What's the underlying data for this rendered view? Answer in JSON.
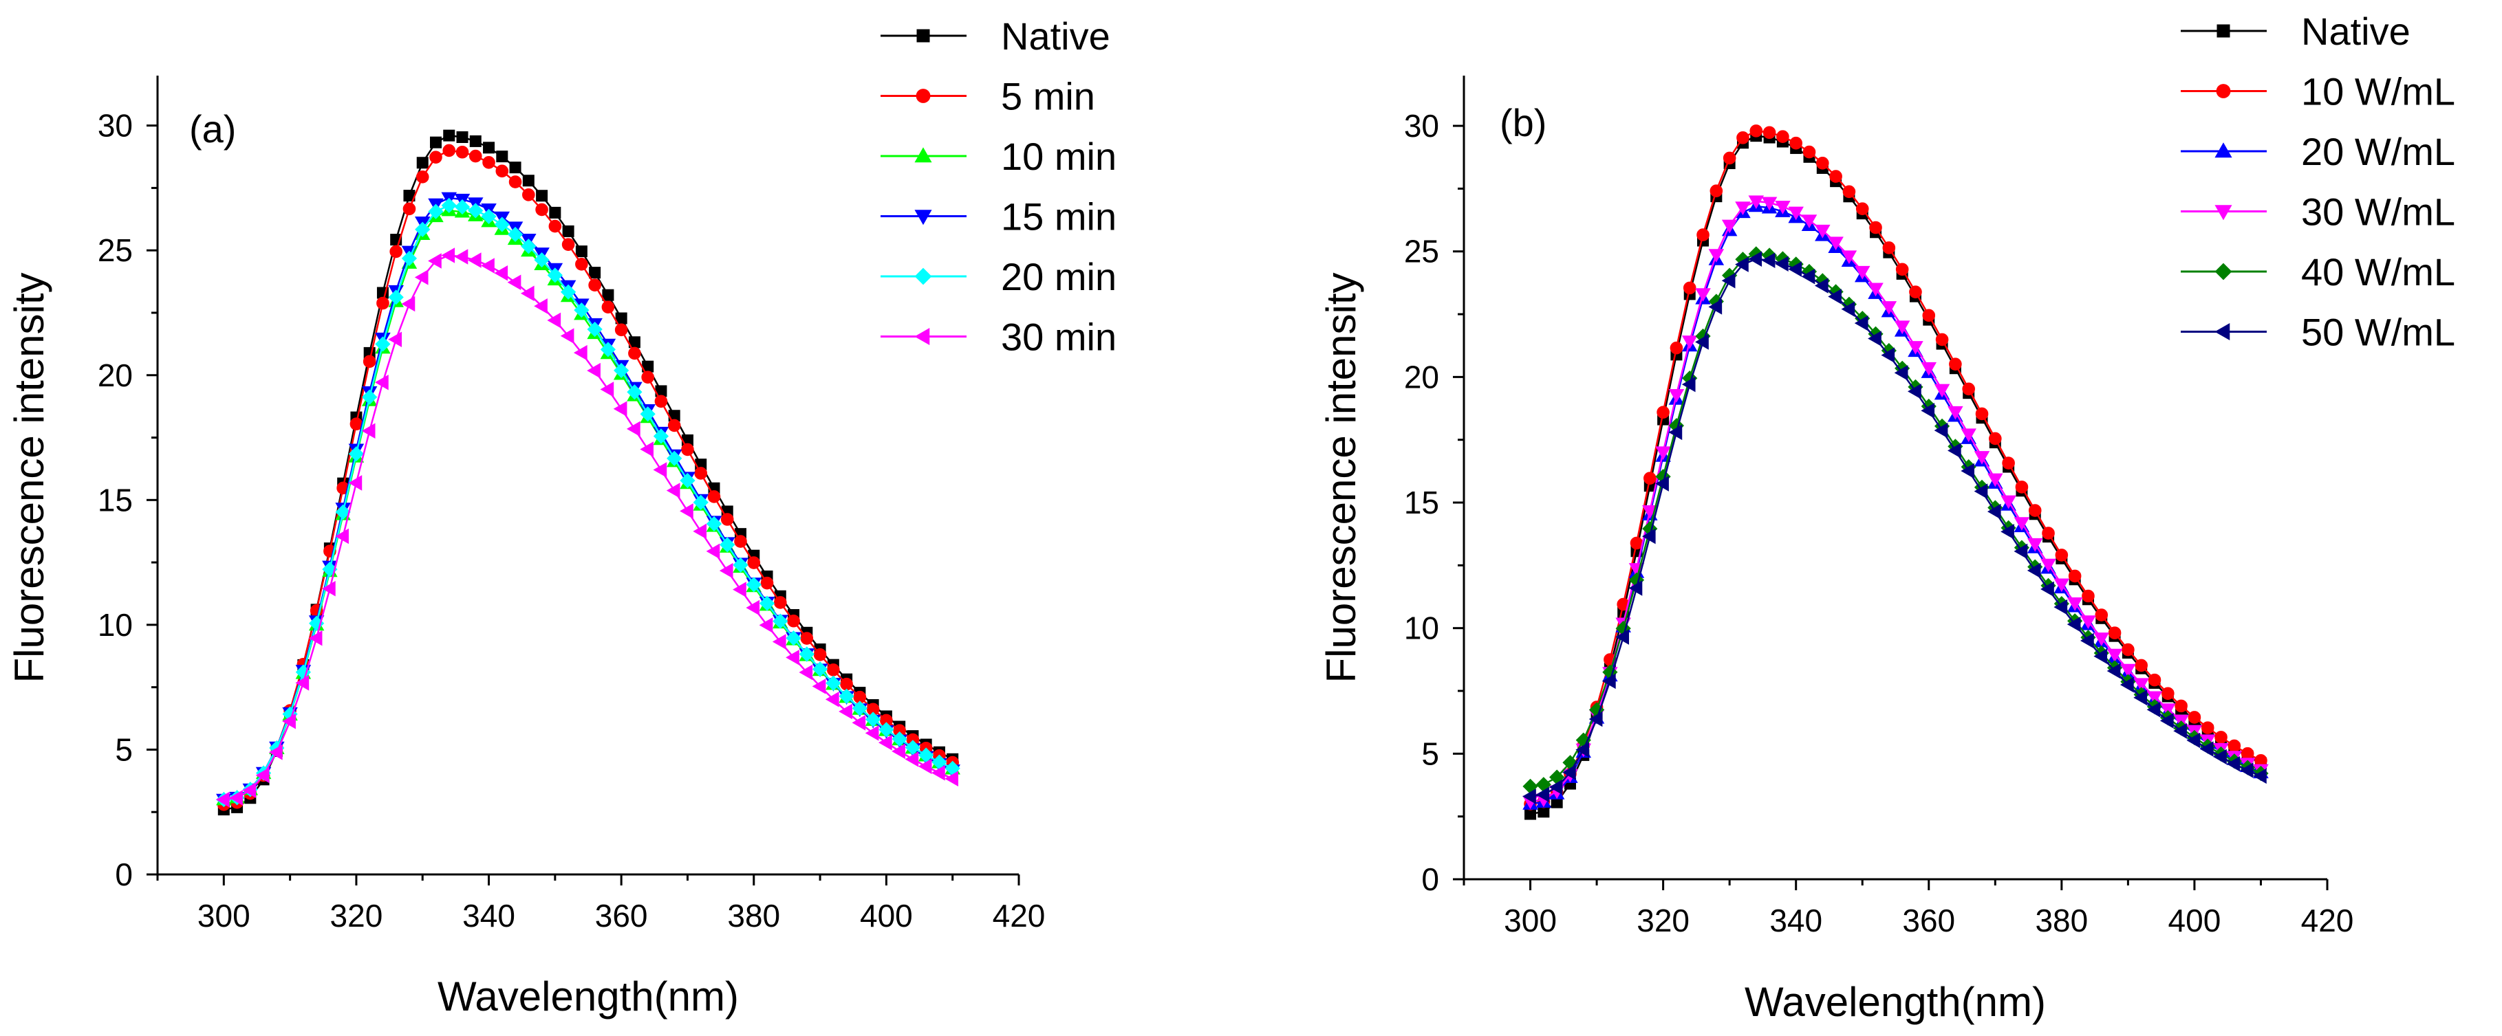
{
  "chart_data": [
    {
      "type": "line",
      "panel_label": "(a)",
      "xlabel": "Wavelength(nm)",
      "ylabel": "Fluorescence intensity",
      "xlim": [
        290,
        420
      ],
      "ylim": [
        0,
        32
      ],
      "xticks": [
        300,
        320,
        340,
        360,
        380,
        400,
        420
      ],
      "yticks": [
        0,
        5,
        10,
        15,
        20,
        25,
        30
      ],
      "legend_position": "top-right, outside plot",
      "x_range": [
        300,
        410
      ],
      "x_step": 2,
      "series": [
        {
          "name": "Native",
          "color": "#000000",
          "marker": "square",
          "peak_x": 334,
          "peak_y": 29.6,
          "start_y": 2.6,
          "end_y": 3.5
        },
        {
          "name": " 5 min",
          "color": "#ff0000",
          "marker": "circle",
          "peak_x": 334,
          "peak_y": 29.0,
          "start_y": 2.8,
          "end_y": 3.4
        },
        {
          "name": "10 min",
          "color": "#00ff00",
          "marker": "triangle-up",
          "peak_x": 334,
          "peak_y": 26.6,
          "start_y": 3.0,
          "end_y": 3.3
        },
        {
          "name": "15 min",
          "color": "#0000ff",
          "marker": "triangle-down",
          "peak_x": 334,
          "peak_y": 27.1,
          "start_y": 3.0,
          "end_y": 3.2
        },
        {
          "name": "20 min",
          "color": "#00ffff",
          "marker": "diamond",
          "peak_x": 334,
          "peak_y": 26.8,
          "start_y": 3.0,
          "end_y": 3.3
        },
        {
          "name": "30 min",
          "color": "#ff00ff",
          "marker": "triangle-left",
          "peak_x": 334,
          "peak_y": 24.8,
          "start_y": 3.0,
          "end_y": 3.0
        }
      ]
    },
    {
      "type": "line",
      "panel_label": "(b)",
      "xlabel": "Wavelength(nm)",
      "ylabel": "Fluorescence intensity",
      "xlim": [
        290,
        420
      ],
      "ylim": [
        0,
        32
      ],
      "xticks": [
        300,
        320,
        340,
        360,
        380,
        400,
        420
      ],
      "yticks": [
        0,
        5,
        10,
        15,
        20,
        25,
        30
      ],
      "legend_position": "top-right, outside plot",
      "x_range": [
        300,
        410
      ],
      "x_step": 2,
      "series": [
        {
          "name": "Native",
          "color": "#000000",
          "marker": "square",
          "peak_x": 334,
          "peak_y": 29.6,
          "start_y": 2.6,
          "end_y": 3.5
        },
        {
          "name": "10 W/mL",
          "color": "#ff0000",
          "marker": "circle",
          "peak_x": 334,
          "peak_y": 29.8,
          "start_y": 3.0,
          "end_y": 3.6
        },
        {
          "name": "20 W/mL",
          "color": "#0000ff",
          "marker": "triangle-up",
          "peak_x": 334,
          "peak_y": 26.8,
          "start_y": 3.0,
          "end_y": 3.3
        },
        {
          "name": "30 W/mL",
          "color": "#ff00ff",
          "marker": "triangle-down",
          "peak_x": 334,
          "peak_y": 27.0,
          "start_y": 3.1,
          "end_y": 3.4
        },
        {
          "name": "40 W/mL",
          "color": "#008000",
          "marker": "diamond",
          "peak_x": 334,
          "peak_y": 24.9,
          "start_y": 3.7,
          "end_y": 3.4
        },
        {
          "name": "50 W/mL",
          "color": "#000080",
          "marker": "triangle-left",
          "peak_x": 334,
          "peak_y": 24.7,
          "start_y": 3.3,
          "end_y": 3.3
        }
      ]
    }
  ]
}
